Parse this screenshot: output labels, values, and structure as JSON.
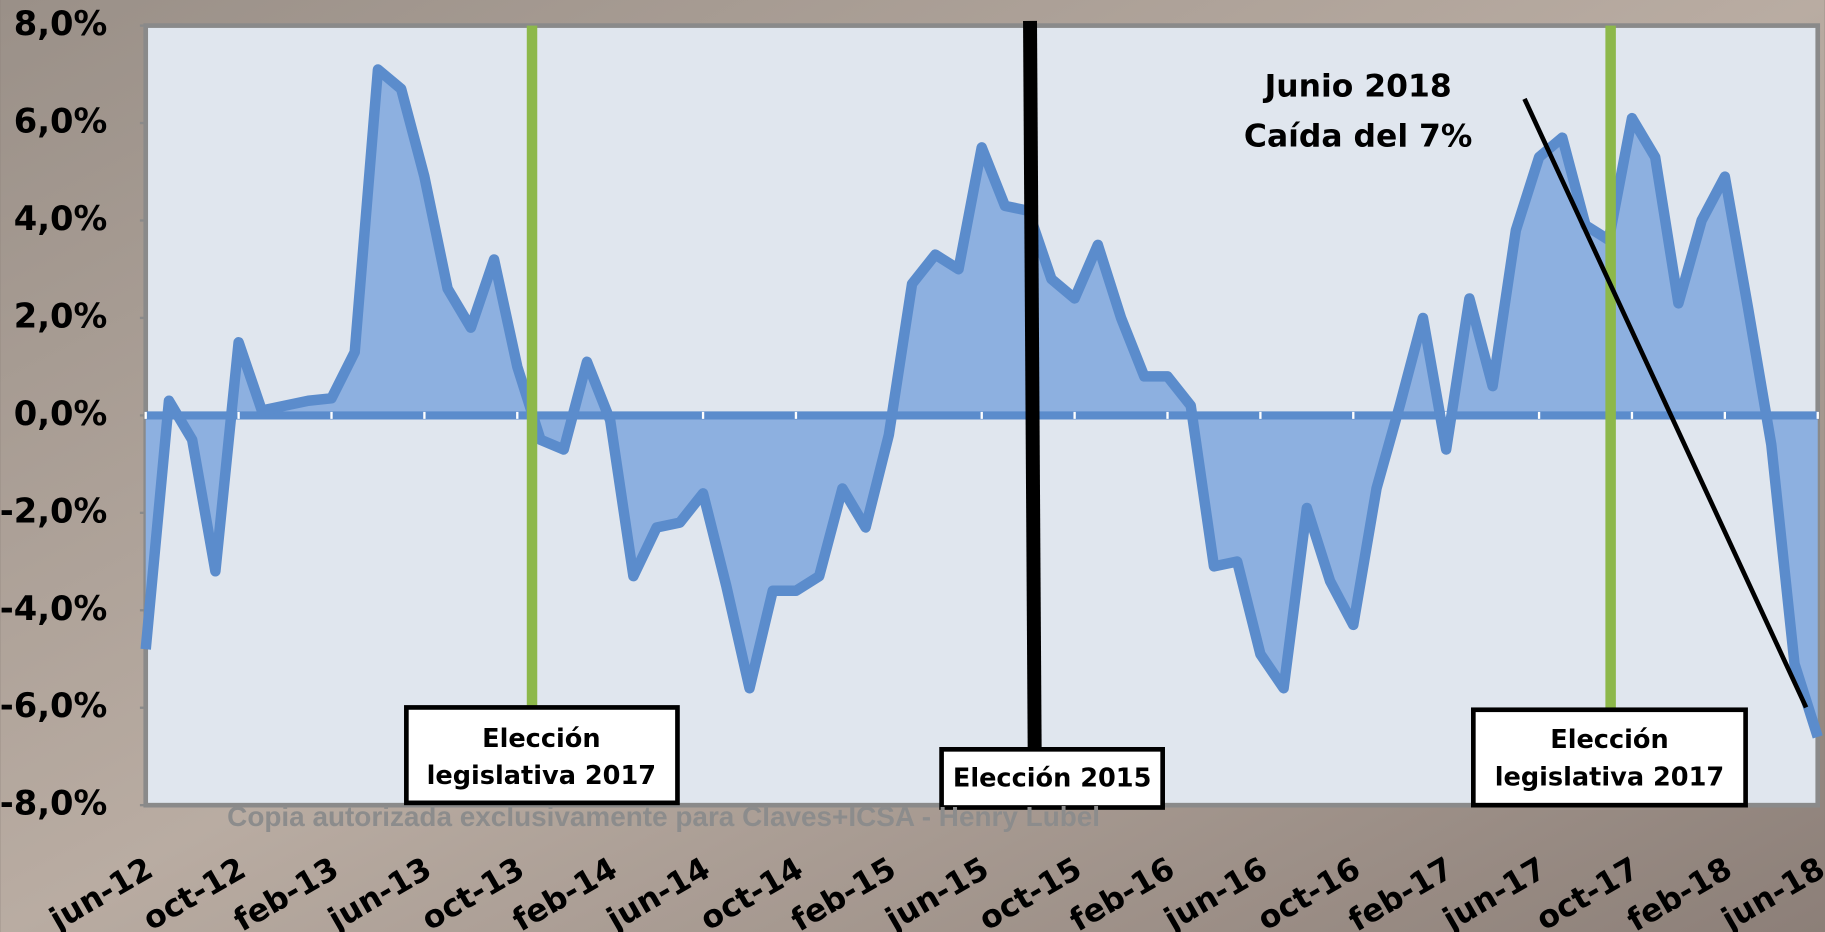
{
  "chart_data": {
    "type": "area",
    "categories": [
      "jun-12",
      null,
      null,
      null,
      "oct-12",
      null,
      null,
      null,
      "feb-13",
      null,
      null,
      null,
      "jun-13",
      null,
      null,
      null,
      "oct-13",
      null,
      null,
      null,
      "feb-14",
      null,
      null,
      null,
      "jun-14",
      null,
      null,
      null,
      "oct-14",
      null,
      null,
      null,
      "feb-15",
      null,
      null,
      null,
      "jun-15",
      null,
      null,
      null,
      "oct-15",
      null,
      null,
      null,
      "feb-16",
      null,
      null,
      null,
      "jun-16",
      null,
      null,
      null,
      "oct-16",
      null,
      null,
      null,
      "feb-17",
      null,
      null,
      null,
      "jun-17",
      null,
      null,
      null,
      "oct-17",
      null,
      null,
      null,
      "feb-18",
      null,
      null,
      null,
      "jun-18"
    ],
    "values": [
      -4.8,
      0.3,
      -0.5,
      -3.2,
      1.5,
      0.1,
      0.2,
      0.3,
      0.35,
      1.3,
      7.1,
      6.7,
      4.9,
      2.6,
      1.8,
      3.2,
      1.0,
      -0.5,
      -0.7,
      1.1,
      -0.1,
      -3.3,
      -2.3,
      -2.2,
      -1.6,
      -3.5,
      -5.6,
      -3.6,
      -3.6,
      -3.3,
      -1.5,
      -2.3,
      -0.4,
      2.7,
      3.3,
      3.0,
      5.5,
      4.3,
      4.2,
      2.8,
      2.4,
      3.5,
      2.0,
      0.8,
      0.8,
      0.2,
      -3.1,
      -3.0,
      -4.9,
      -5.6,
      -1.9,
      -3.4,
      -4.3,
      -1.5,
      0.2,
      2.0,
      -0.7,
      2.4,
      0.6,
      3.8,
      5.3,
      5.7,
      3.9,
      3.6,
      6.1,
      5.3,
      2.3,
      4.0,
      4.9,
      2.2,
      -0.6,
      -5.1,
      -6.6
    ],
    "color": "#5b8ccc",
    "fill_color": "#8db0e0",
    "ylim": [
      -8,
      8
    ],
    "yticks": [
      {
        "value": -8,
        "label": "-8,0%"
      },
      {
        "value": -6,
        "label": "-6,0%"
      },
      {
        "value": -4,
        "label": "-4,0%"
      },
      {
        "value": -2,
        "label": "-2,0%"
      },
      {
        "value": 0,
        "label": "0,0%"
      },
      {
        "value": 2,
        "label": "2,0%"
      },
      {
        "value": 4,
        "label": "4,0%"
      },
      {
        "value": 6,
        "label": "6,0%"
      },
      {
        "value": 8,
        "label": "8,0%"
      }
    ],
    "annotations": [
      {
        "lines": [
          "Junio 2018",
          "Caída del 7%"
        ]
      },
      {
        "lines": [
          "Elección",
          "legislativa 2017"
        ]
      },
      {
        "lines": [
          "Elección 2015"
        ]
      },
      {
        "lines": [
          "Elección",
          "legislativa 2017"
        ]
      }
    ],
    "watermark": "Copia autorizada exclusivamente para Claves+ICSA - Henry Lubel"
  }
}
